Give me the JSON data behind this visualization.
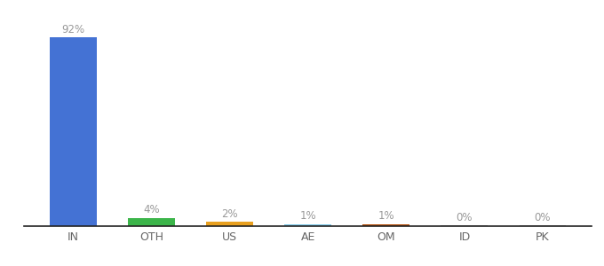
{
  "categories": [
    "IN",
    "OTH",
    "US",
    "AE",
    "OM",
    "ID",
    "PK"
  ],
  "values": [
    92,
    4,
    2,
    1,
    1,
    0.3,
    0.3
  ],
  "display_labels": [
    "92%",
    "4%",
    "2%",
    "1%",
    "1%",
    "0%",
    "0%"
  ],
  "bar_colors": [
    "#4472d4",
    "#3cb54a",
    "#e8a020",
    "#7ec8e8",
    "#b5500a",
    "#aaaaaa",
    "#aaaaaa"
  ],
  "background_color": "#ffffff",
  "label_color": "#999999",
  "label_fontsize": 8.5,
  "bar_width": 0.6,
  "ylim": [
    0,
    100
  ],
  "figsize": [
    6.8,
    3.0
  ],
  "dpi": 100
}
